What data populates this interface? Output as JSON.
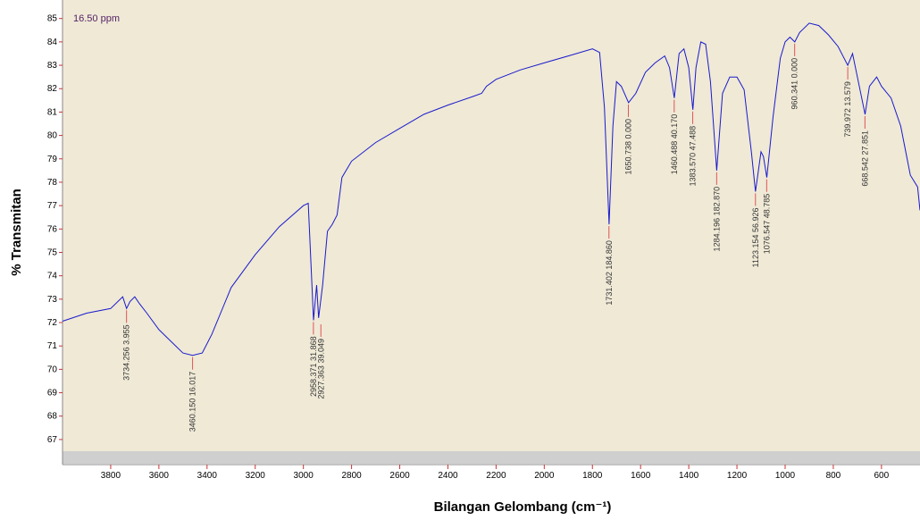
{
  "chart_data": {
    "type": "line",
    "annotation": "16.50 ppm",
    "xlabel": "Bilangan Gelombang (cm⁻¹)",
    "ylabel": "% Transmitan",
    "color": "#1a1acc",
    "xlim": [
      4000,
      440
    ],
    "ylim": [
      66.5,
      85.6
    ],
    "xticks": [
      3800,
      3600,
      3400,
      3200,
      3000,
      2800,
      2600,
      2400,
      2200,
      2000,
      1800,
      1600,
      1400,
      1200,
      1000,
      800,
      600
    ],
    "yticks": [
      67,
      68,
      69,
      70,
      71,
      72,
      73,
      74,
      75,
      76,
      77,
      78,
      79,
      80,
      81,
      82,
      83,
      84,
      85
    ],
    "x": [
      4000,
      3900,
      3800,
      3750,
      3734,
      3720,
      3700,
      3680,
      3650,
      3600,
      3550,
      3500,
      3460,
      3420,
      3380,
      3300,
      3200,
      3100,
      3000,
      2980,
      2958,
      2945,
      2937,
      2920,
      2900,
      2880,
      2860,
      2840,
      2800,
      2700,
      2600,
      2500,
      2400,
      2300,
      2260,
      2240,
      2200,
      2100,
      2000,
      1900,
      1800,
      1770,
      1750,
      1731,
      1715,
      1700,
      1680,
      1650,
      1620,
      1580,
      1540,
      1500,
      1480,
      1460,
      1440,
      1420,
      1400,
      1383,
      1370,
      1350,
      1330,
      1310,
      1284,
      1260,
      1230,
      1200,
      1170,
      1140,
      1123,
      1100,
      1090,
      1076,
      1050,
      1020,
      1000,
      980,
      960,
      940,
      900,
      860,
      820,
      780,
      740,
      720,
      700,
      668,
      650,
      620,
      600,
      560,
      520,
      480,
      450,
      440
    ],
    "values": [
      72.06,
      72.4,
      72.6,
      73.1,
      72.6,
      72.9,
      73.1,
      72.8,
      72.4,
      71.7,
      71.2,
      70.7,
      70.6,
      70.7,
      71.5,
      73.5,
      74.9,
      76.1,
      77.0,
      77.1,
      72.1,
      73.6,
      72.2,
      73.6,
      75.9,
      76.2,
      76.6,
      78.2,
      78.9,
      79.7,
      80.3,
      80.9,
      81.3,
      81.65,
      81.8,
      82.1,
      82.4,
      82.8,
      83.1,
      83.4,
      83.7,
      83.55,
      81.2,
      76.2,
      80.4,
      82.3,
      82.1,
      81.4,
      81.8,
      82.7,
      83.1,
      83.4,
      82.9,
      81.6,
      83.5,
      83.7,
      82.9,
      81.1,
      82.9,
      84.0,
      83.9,
      82.3,
      78.5,
      81.8,
      82.5,
      82.5,
      81.95,
      79.3,
      77.6,
      79.3,
      79.1,
      78.2,
      80.8,
      83.3,
      84.0,
      84.2,
      84.0,
      84.4,
      84.8,
      84.7,
      84.3,
      83.8,
      83.0,
      83.5,
      82.5,
      80.9,
      82.1,
      82.5,
      82.1,
      81.6,
      80.4,
      78.3,
      77.8,
      76.8
    ],
    "peaks": [
      {
        "x": 3734.256,
        "y": 72.6,
        "label": "3734.256  3.955"
      },
      {
        "x": 3460.15,
        "y": 70.6,
        "label": "3460.150  16.017"
      },
      {
        "x": 2958.371,
        "y": 72.1,
        "label": "2958.371  31.868"
      },
      {
        "x": 2927.363,
        "y": 72.0,
        "label": "2927.363  39.049"
      },
      {
        "x": 1731.402,
        "y": 76.2,
        "label": "1731.402  184.860"
      },
      {
        "x": 1650.738,
        "y": 81.4,
        "label": "1650.738  0.000"
      },
      {
        "x": 1460.488,
        "y": 81.6,
        "label": "1460.488  40.170"
      },
      {
        "x": 1383.57,
        "y": 81.1,
        "label": "1383.570  47.488"
      },
      {
        "x": 1284.196,
        "y": 78.5,
        "label": "1284.196  182.870"
      },
      {
        "x": 1123.154,
        "y": 77.6,
        "label": "1123.154  56.926"
      },
      {
        "x": 1076.547,
        "y": 78.2,
        "label": "1076.547  48.785"
      },
      {
        "x": 960.341,
        "y": 84.0,
        "label": "960.341  0.000"
      },
      {
        "x": 739.972,
        "y": 83.0,
        "label": "739.972  13.579"
      },
      {
        "x": 668.542,
        "y": 80.9,
        "label": "668.542  27.851"
      }
    ]
  }
}
